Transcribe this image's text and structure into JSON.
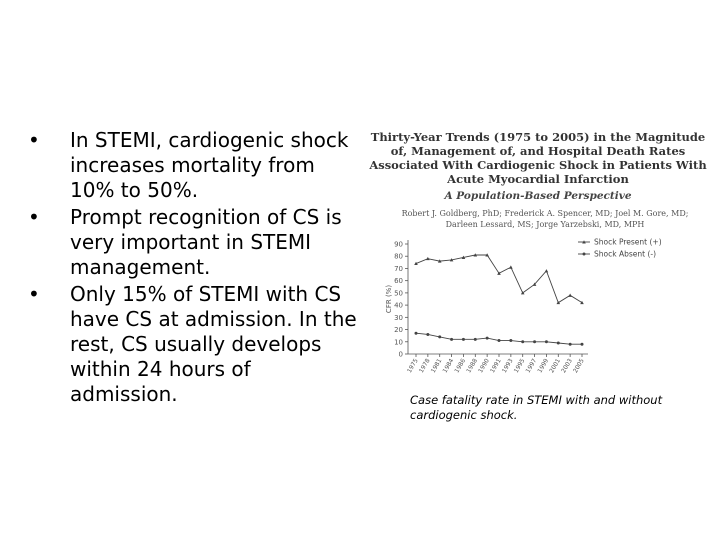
{
  "slide": {
    "bullets": [
      "In STEMI, cardiogenic shock increases mortality from 10% to 50%.",
      "Prompt recognition of CS is very important in STEMI management.",
      "Only 15% of STEMI with CS have CS at admission. In the rest, CS usually develops within 24 hours of admission."
    ],
    "bullet_symbol": "•"
  },
  "figure": {
    "title": "Thirty-Year Trends (1975 to 2005) in the Magnitude of, Management of, and Hospital Death Rates Associated With Cardiogenic Shock in Patients With Acute Myocardial Infarction",
    "subtitle": "A Population-Based Perspective",
    "authors": "Robert J. Goldberg, PhD; Frederick A. Spencer, MD; Joel M. Gore, MD; Darleen Lessard, MS; Jorge Yarzebski, MD, MPH",
    "caption": "Case fatality rate in STEMI with and without cardiogenic shock."
  },
  "chart_data": {
    "type": "line",
    "ylabel": "CFR (%)",
    "ylim": [
      0,
      90
    ],
    "yticks": [
      0,
      10,
      20,
      30,
      40,
      50,
      60,
      70,
      80,
      90
    ],
    "categories": [
      "1975",
      "1978",
      "1981",
      "1984",
      "1986",
      "1988",
      "1990",
      "1991",
      "1993",
      "1995",
      "1997",
      "1999",
      "2001",
      "2003",
      "2005"
    ],
    "series": [
      {
        "name": "Shock Present (+)",
        "marker": "triangle",
        "color": "#444444",
        "values": [
          74,
          78,
          76,
          77,
          79,
          81,
          81,
          66,
          71,
          50,
          57,
          68,
          42,
          48,
          42
        ]
      },
      {
        "name": "Shock Absent (-)",
        "marker": "circle",
        "color": "#444444",
        "values": [
          17,
          16,
          14,
          12,
          12,
          12,
          13,
          11,
          11,
          10,
          10,
          10,
          9,
          8,
          8
        ]
      }
    ],
    "legend_position": "top-right",
    "grid": false
  }
}
